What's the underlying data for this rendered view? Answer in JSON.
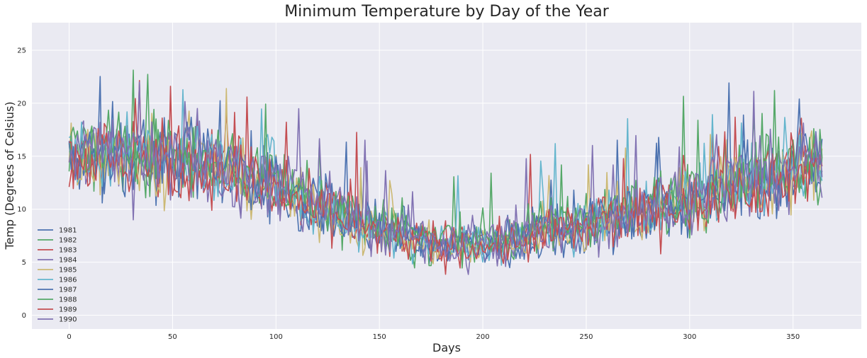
{
  "chart_data": {
    "type": "line",
    "title": "Minimum Temperature by Day of the Year",
    "xlabel": "Days",
    "ylabel": "Temp (Degrees of Celsius)",
    "xlim": [
      -18,
      383
    ],
    "ylim": [
      -1.3,
      27.6
    ],
    "xticks": [
      0,
      50,
      100,
      150,
      200,
      250,
      300,
      350
    ],
    "yticks": [
      0,
      5,
      10,
      15,
      20,
      25
    ],
    "grid": true,
    "legend": "lower-left",
    "days": 365,
    "seasonal_profile": {
      "day": [
        0,
        30,
        60,
        90,
        120,
        150,
        180,
        210,
        240,
        270,
        300,
        330,
        364
      ],
      "mean_min_temp": [
        15.5,
        15.0,
        14.8,
        13.0,
        10.5,
        8.0,
        6.8,
        7.0,
        8.2,
        9.5,
        11.2,
        12.8,
        14.5
      ]
    },
    "series": [
      {
        "name": "1981",
        "color": "#4c72b0"
      },
      {
        "name": "1982",
        "color": "#55a868"
      },
      {
        "name": "1983",
        "color": "#c44e52"
      },
      {
        "name": "1984",
        "color": "#8172b2"
      },
      {
        "name": "1985",
        "color": "#ccb974"
      },
      {
        "name": "1986",
        "color": "#64b5cd"
      },
      {
        "name": "1987",
        "color": "#4c72b0"
      },
      {
        "name": "1988",
        "color": "#55a868"
      },
      {
        "name": "1989",
        "color": "#c44e52"
      },
      {
        "name": "1990",
        "color": "#8172b2"
      }
    ]
  }
}
